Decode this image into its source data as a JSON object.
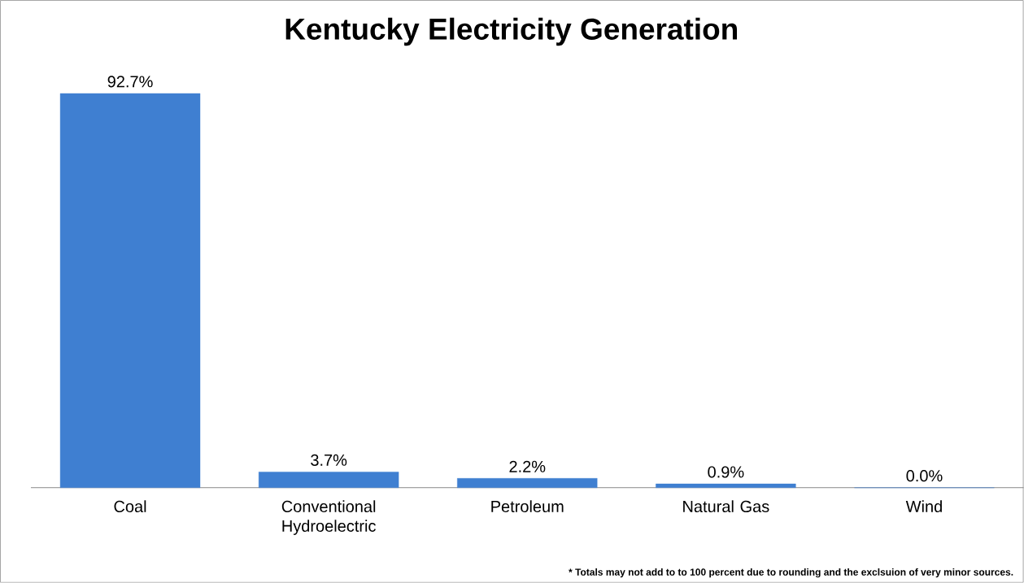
{
  "chart_data": {
    "type": "bar",
    "title": "Kentucky Electricity Generation",
    "categories": [
      "Coal",
      "Conventional Hydroelectric",
      "Petroleum",
      "Natural Gas",
      "Wind"
    ],
    "values": [
      92.7,
      3.7,
      2.2,
      0.9,
      0.0
    ],
    "value_labels": [
      "92.7%",
      "3.7%",
      "2.2%",
      "0.9%",
      "0.0%"
    ],
    "color": "#3f7fd1",
    "annotations": [
      "* Totals may not add to to 100 percent due to rounding and the exclsuion of very minor sources."
    ]
  }
}
